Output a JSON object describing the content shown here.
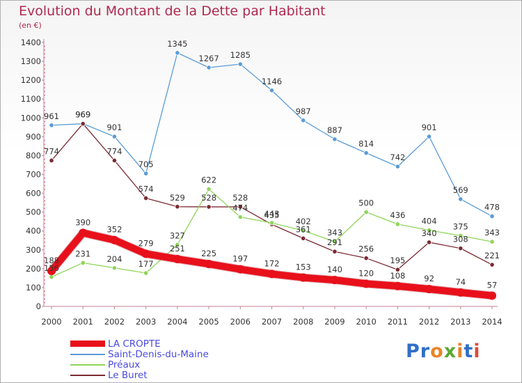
{
  "header": {
    "title": "Evolution du Montant de la Dette par Habitant",
    "subtitle": "(en €)"
  },
  "logo": {
    "text": "Proxiti",
    "colors": [
      "#2f6fc8",
      "#2f6fc8",
      "#e8842a",
      "#5aa832",
      "#e8842a",
      "#2f6fc8",
      "#e04a3a"
    ]
  },
  "chart_data": {
    "type": "line",
    "title": "Evolution du Montant de la Dette par Habitant",
    "subtitle": "(en €)",
    "xlabel": "",
    "ylabel": "",
    "x": [
      2000,
      2001,
      2002,
      2003,
      2004,
      2005,
      2006,
      2007,
      2008,
      2009,
      2010,
      2011,
      2012,
      2013,
      2014
    ],
    "ylim": [
      0,
      1400
    ],
    "yticks": [
      0,
      100,
      200,
      300,
      400,
      500,
      600,
      700,
      800,
      900,
      1000,
      1100,
      1200,
      1300,
      1400
    ],
    "grid": false,
    "legend_position": "bottom-left",
    "series": [
      {
        "name": "LA CROPTE",
        "color": "#e8101a",
        "values": [
          188,
          390,
          352,
          279,
          251,
          225,
          197,
          172,
          153,
          140,
          120,
          108,
          92,
          74,
          57
        ],
        "labels": [
          "188",
          "390",
          "352",
          "279",
          "251",
          "225",
          "197",
          "172",
          "153",
          "140",
          "120",
          "108",
          "92",
          "74",
          "57"
        ]
      },
      {
        "name": "Saint-Denis-du-Maine",
        "color": "#5b9bd5",
        "values": [
          961,
          969,
          901,
          705,
          1345,
          1267,
          1285,
          1146,
          987,
          887,
          814,
          742,
          901,
          569,
          478
        ],
        "labels": [
          "961",
          "969",
          "901",
          "705",
          "1345",
          "1267",
          "1285",
          "1146",
          "987",
          "887",
          "814",
          "742",
          "901",
          "569",
          "478"
        ]
      },
      {
        "name": "Préaux",
        "color": "#8fd45a",
        "values": [
          156,
          231,
          204,
          177,
          327,
          622,
          474,
          443,
          402,
          343,
          500,
          436,
          404,
          375,
          343
        ],
        "labels": [
          "156",
          "231",
          "204",
          "177",
          "327",
          "622",
          "474",
          "443",
          "402",
          "343",
          "500",
          "436",
          "404",
          "375",
          "343"
        ]
      },
      {
        "name": "Le Buret",
        "color": "#7a2a33",
        "values": [
          774,
          969,
          774,
          574,
          529,
          528,
          528,
          435,
          361,
          291,
          256,
          195,
          340,
          308,
          221
        ],
        "labels": [
          "774",
          "969",
          "774",
          "574",
          "529",
          "528",
          "528",
          "435",
          "361",
          "291",
          "256",
          "195",
          "340",
          "308",
          "221"
        ]
      }
    ]
  }
}
